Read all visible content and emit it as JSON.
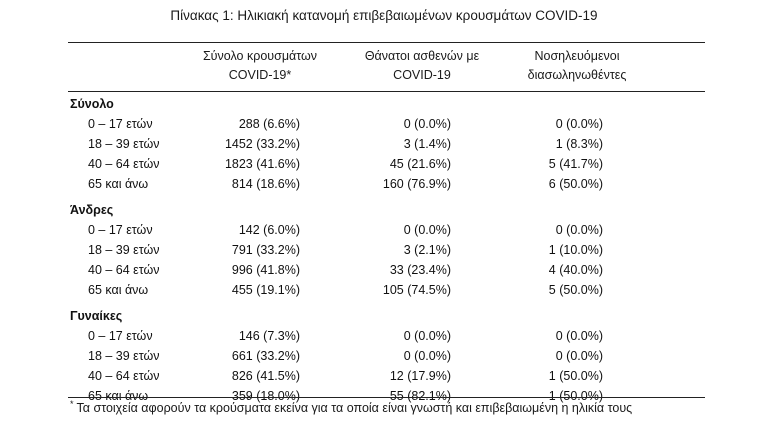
{
  "title": "Πίνακας 1: Ηλικιακή κατανομή επιβεβαιωμένων κρουσμάτων COVID-19",
  "columns": {
    "c1_line1": "Σύνολο κρουσμάτων",
    "c1_line2": "COVID-19*",
    "c2_line1": "Θάνατοι ασθενών με",
    "c2_line2": "COVID-19",
    "c3_line1": "Νοσηλευόμενοι",
    "c3_line2": "διασωληνωθέντες"
  },
  "groups": [
    {
      "label": "Σύνολο",
      "rows": [
        {
          "age": "0 – 17 ετών",
          "cases": "288 (6.6%)",
          "deaths": "0 (0.0%)",
          "intubated": "0 (0.0%)"
        },
        {
          "age": "18 – 39 ετών",
          "cases": "1452 (33.2%)",
          "deaths": "3 (1.4%)",
          "intubated": "1 (8.3%)"
        },
        {
          "age": "40 – 64 ετών",
          "cases": "1823 (41.6%)",
          "deaths": "45 (21.6%)",
          "intubated": "5 (41.7%)"
        },
        {
          "age": "65 και άνω",
          "cases": "814 (18.6%)",
          "deaths": "160 (76.9%)",
          "intubated": "6 (50.0%)"
        }
      ]
    },
    {
      "label": "Άνδρες",
      "rows": [
        {
          "age": "0 – 17 ετών",
          "cases": "142 (6.0%)",
          "deaths": "0 (0.0%)",
          "intubated": "0 (0.0%)"
        },
        {
          "age": "18 – 39 ετών",
          "cases": "791 (33.2%)",
          "deaths": "3 (2.1%)",
          "intubated": "1 (10.0%)"
        },
        {
          "age": "40 – 64 ετών",
          "cases": "996 (41.8%)",
          "deaths": "33 (23.4%)",
          "intubated": "4 (40.0%)"
        },
        {
          "age": "65 και άνω",
          "cases": "455 (19.1%)",
          "deaths": "105 (74.5%)",
          "intubated": "5 (50.0%)"
        }
      ]
    },
    {
      "label": "Γυναίκες",
      "rows": [
        {
          "age": "0 – 17 ετών",
          "cases": "146 (7.3%)",
          "deaths": "0 (0.0%)",
          "intubated": "0 (0.0%)"
        },
        {
          "age": "18 – 39 ετών",
          "cases": "661 (33.2%)",
          "deaths": "0 (0.0%)",
          "intubated": "0 (0.0%)"
        },
        {
          "age": "40 – 64 ετών",
          "cases": "826 (41.5%)",
          "deaths": "12 (17.9%)",
          "intubated": "1 (50.0%)"
        },
        {
          "age": "65 και άνω",
          "cases": "359 (18.0%)",
          "deaths": "55 (82.1%)",
          "intubated": "1 (50.0%)"
        }
      ]
    }
  ],
  "footnote": {
    "marker": "*",
    "text": "Τα στοιχεία αφορούν τα κρούσματα εκείνα για τα οποία είναι γνωστή και επιβεβαιωμένη η ηλικία τους"
  }
}
